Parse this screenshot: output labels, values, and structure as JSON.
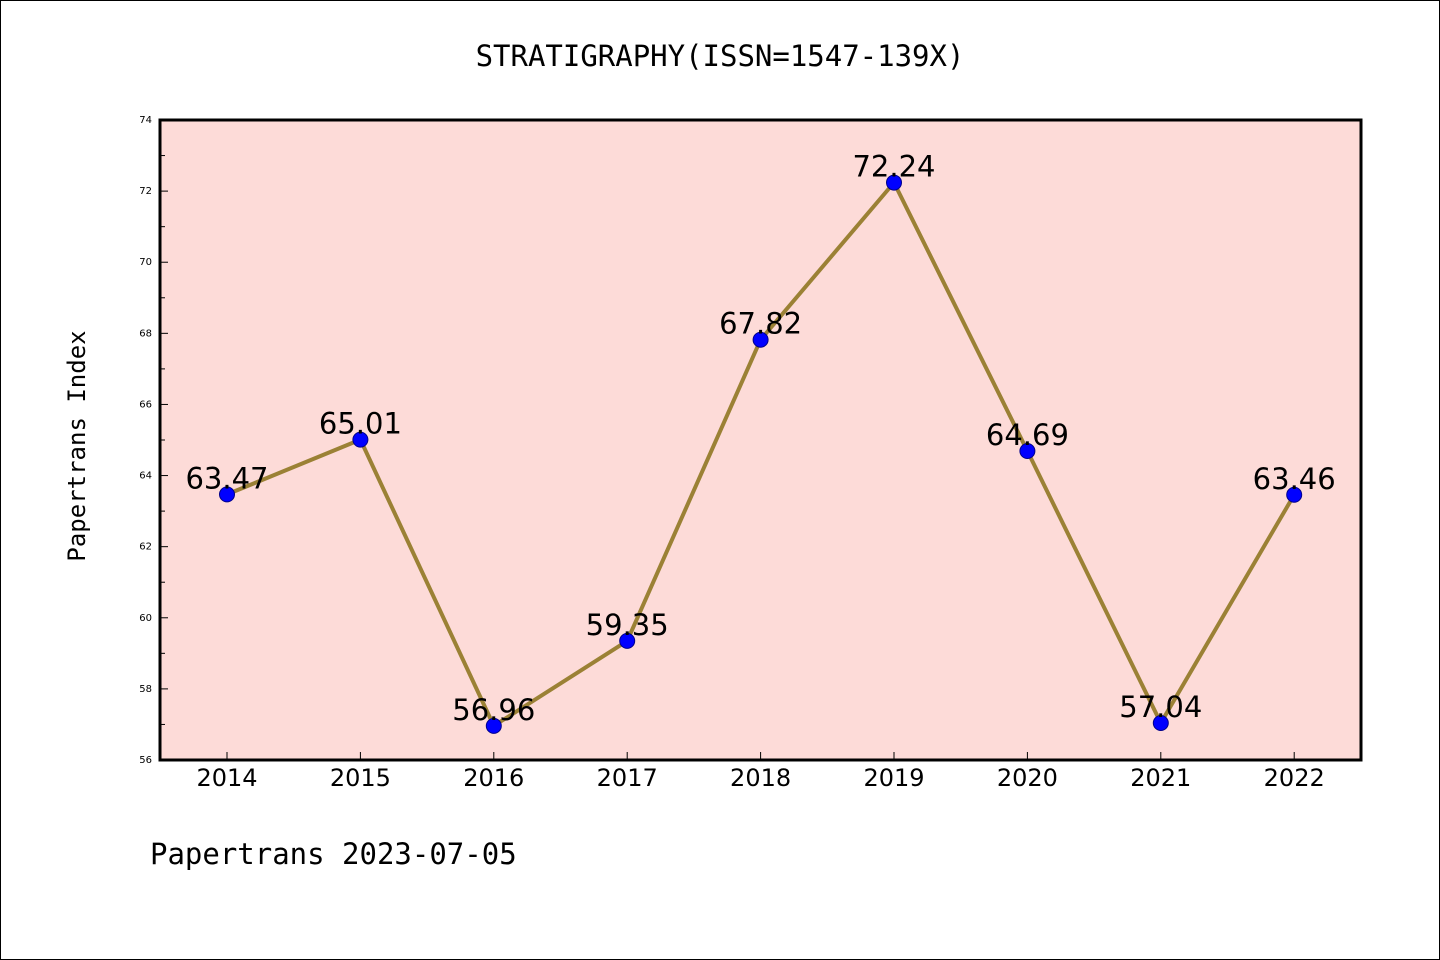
{
  "chart_data": {
    "type": "line",
    "title": "STRATIGRAPHY(ISSN=1547-139X)",
    "xlabel": "",
    "ylabel": "Papertrans Index",
    "categories": [
      "2014",
      "2015",
      "2016",
      "2017",
      "2018",
      "2019",
      "2020",
      "2021",
      "2022"
    ],
    "series": [
      {
        "values": [
          63.47,
          65.01,
          56.96,
          59.35,
          67.82,
          72.24,
          64.69,
          57.04,
          63.46
        ],
        "labels": [
          "63.47",
          "65.01",
          "56.96",
          "59.35",
          "67.82",
          "72.24",
          "64.69",
          "57.04",
          "63.46"
        ]
      }
    ],
    "ylim": [
      56,
      74
    ],
    "yticks": [
      "56",
      "58",
      "60",
      "62",
      "64",
      "66",
      "68",
      "70",
      "72",
      "74"
    ],
    "grid": false,
    "legend": "none",
    "colors": {
      "plot_background": "#fddbd8",
      "line": "#9b8135",
      "marker": "#0000ff",
      "marker_edge": "#00008b",
      "axes": "#000000"
    }
  },
  "footer": "Papertrans 2023-07-05"
}
